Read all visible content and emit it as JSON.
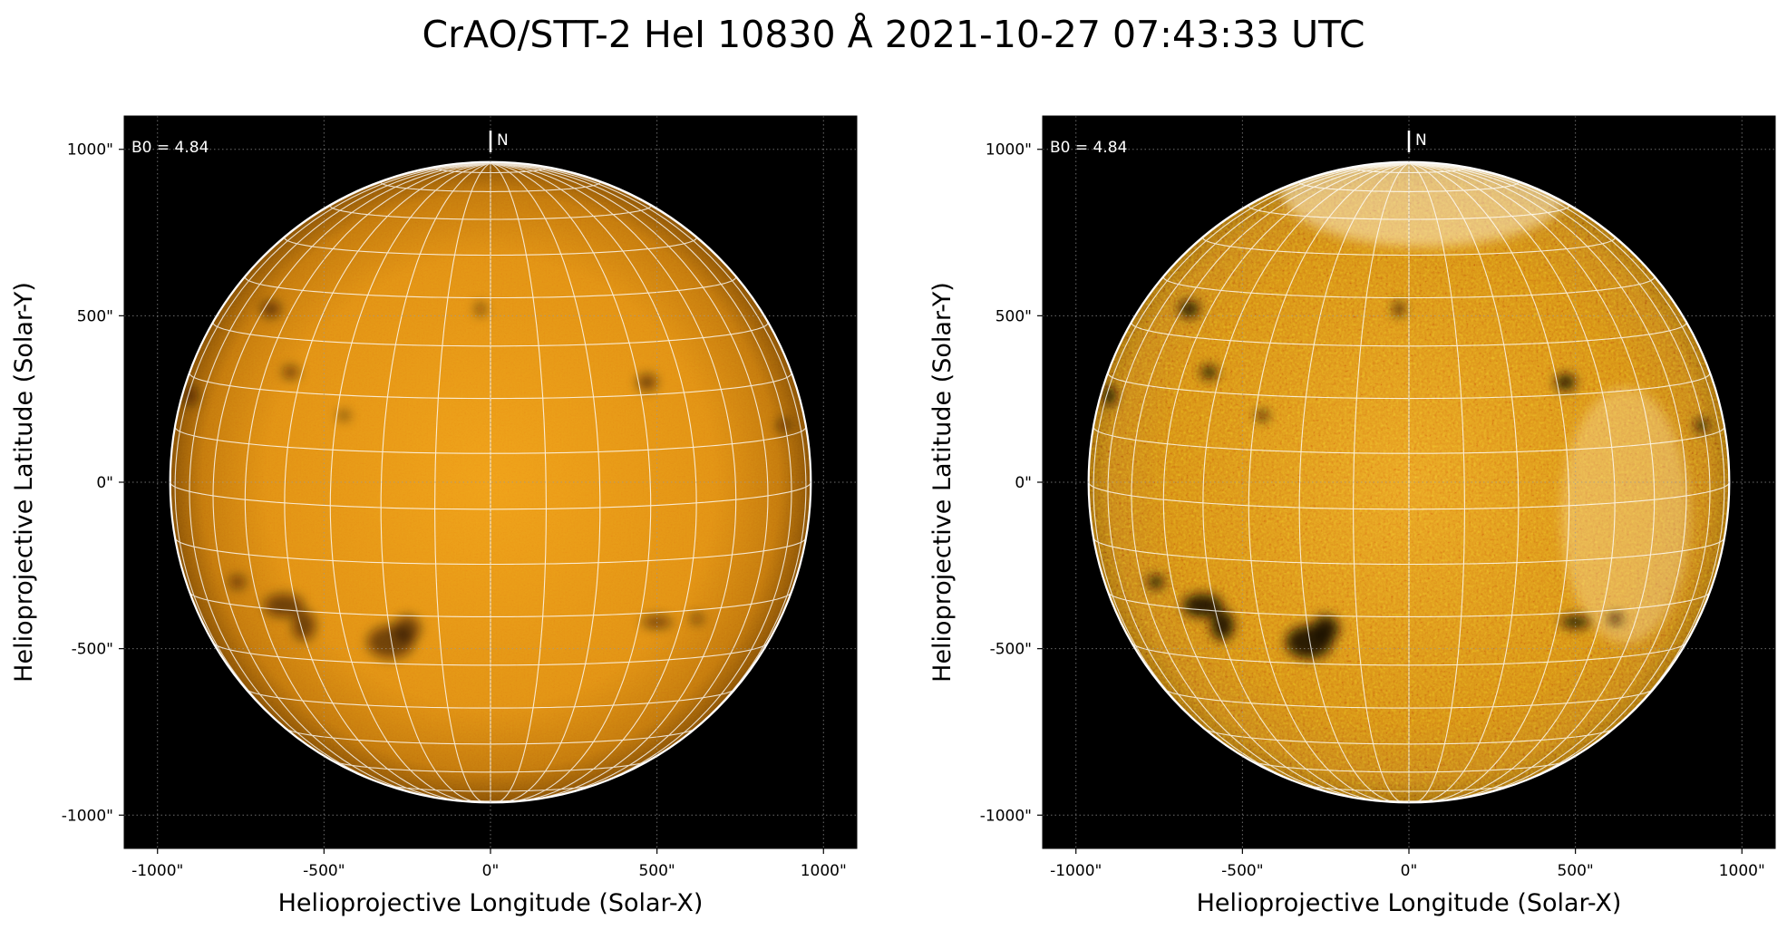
{
  "title": "CrAO/STT-2 HeI 10830 Å 2021-10-27 07:43:33 UTC",
  "panels": [
    {
      "id": "left",
      "annotation": "B0 = 4.84",
      "north_label": "N",
      "xlabel": "Helioprojective Longitude (Solar-X)",
      "ylabel": "Helioprojective Latitude (Solar-Y)",
      "xticks": [
        "-1000\"",
        "-500\"",
        "0\"",
        "500\"",
        "1000\""
      ],
      "yticks": [
        "1000\"",
        "500\"",
        "0\"",
        "-500\"",
        "-1000\""
      ],
      "colormap": "orange-gold",
      "contrast": "low"
    },
    {
      "id": "right",
      "annotation": "B0 = 4.84",
      "north_label": "N",
      "xlabel": "Helioprojective Longitude (Solar-X)",
      "ylabel": "Helioprojective Latitude (Solar-Y)",
      "xticks": [
        "-1000\"",
        "-500\"",
        "0\"",
        "500\"",
        "1000\""
      ],
      "yticks": [
        "1000\"",
        "500\"",
        "0\"",
        "-500\"",
        "-1000\""
      ],
      "colormap": "orange-gold",
      "contrast": "high"
    }
  ]
}
